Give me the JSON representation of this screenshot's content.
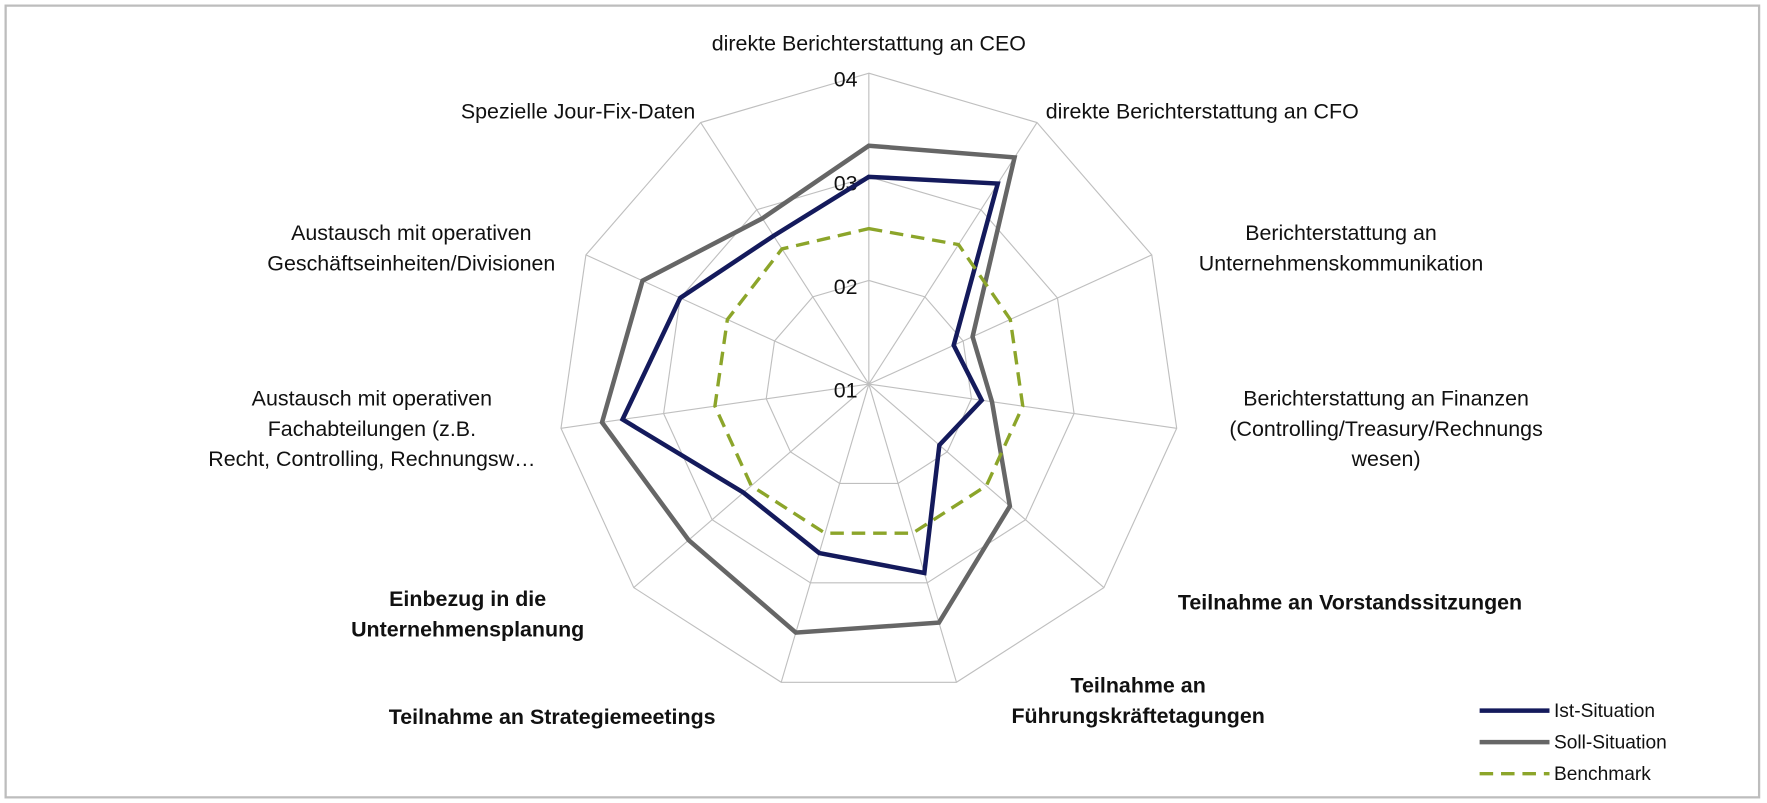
{
  "chart_data": {
    "type": "radar",
    "categories": [
      "direkte Berichterstattung an CEO",
      "direkte Berichterstattung an CFO",
      "Berichterstattung an\nUnternehmenskommunikation",
      "Berichterstattung an Finanzen\n(Controlling/Treasury/Rechnungs\nwesen)",
      "Teilnahme an Vorstandssitzungen",
      "Teilnahme an\nFührungskräftetagungen",
      "Teilnahme an Strategiemeetings",
      "Einbezug in die\nUnternehmensplanung",
      "Austausch mit operativen\nFachabteilungen (z.B.\nRecht, Controlling, Rechnungsw…",
      "Austausch mit operativen\nGeschäftseinheiten/Divisionen",
      "Spezielle Jour-Fix-Daten"
    ],
    "series": [
      {
        "name": "Ist-Situation",
        "color": "#141a5c",
        "dash": false,
        "values": [
          3.0,
          3.3,
          1.9,
          2.1,
          1.9,
          2.9,
          2.7,
          2.6,
          3.4,
          3.0,
          2.7
        ]
      },
      {
        "name": "Soll-Situation",
        "color": "#666666",
        "dash": false,
        "values": [
          3.3,
          3.6,
          2.1,
          2.2,
          2.8,
          3.4,
          3.5,
          3.3,
          3.6,
          3.4,
          2.9
        ]
      },
      {
        "name": "Benchmark",
        "color": "#8ca52a",
        "dash": true,
        "values": [
          2.5,
          2.6,
          2.5,
          2.5,
          2.5,
          2.5,
          2.5,
          2.5,
          2.5,
          2.5,
          2.55
        ]
      }
    ],
    "ylim": [
      1,
      4
    ],
    "yticks": [
      {
        "value": 1,
        "label": "01"
      },
      {
        "value": 2,
        "label": "02"
      },
      {
        "value": 3,
        "label": "03"
      },
      {
        "value": 4,
        "label": "04"
      }
    ],
    "bold_categories": [
      4,
      5,
      6,
      7
    ],
    "legend": "bottom-right"
  }
}
